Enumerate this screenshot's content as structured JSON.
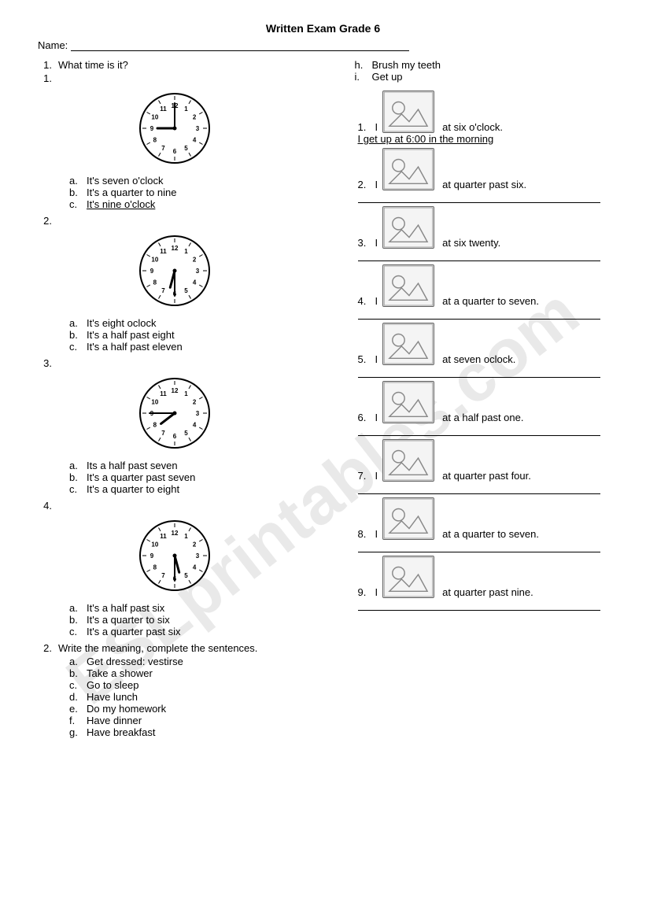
{
  "title": "Written Exam Grade 6",
  "name_label": "Name:",
  "watermark": "ESLprintables.com",
  "left": {
    "q1": {
      "num": "1.",
      "text": "What time is it?",
      "sub_num": "1.",
      "clocks": [
        {
          "hour": 9,
          "minute": 0,
          "opts": [
            {
              "l": "a.",
              "t": "It's seven o'clock"
            },
            {
              "l": "b.",
              "t": "It's a quarter to nine"
            },
            {
              "l": "c.",
              "t": "It's nine o'clock",
              "u": true
            }
          ]
        },
        {
          "num": "2.",
          "hour": 6,
          "minute": 30,
          "opts": [
            {
              "l": "a.",
              "t": "It's eight oclock"
            },
            {
              "l": "b.",
              "t": "It's a half past eight"
            },
            {
              "l": "c.",
              "t": "It's a half past eleven"
            }
          ]
        },
        {
          "num": "3.",
          "hour": 7,
          "minute": 45,
          "opts": [
            {
              "l": "a.",
              "t": "Its a half past seven"
            },
            {
              "l": "b.",
              "t": "It's a quarter past seven"
            },
            {
              "l": "c.",
              "t": "It's a quarter to eight"
            }
          ]
        },
        {
          "num": "4.",
          "hour": 5,
          "minute": 30,
          "opts": [
            {
              "l": "a.",
              "t": "It's a half past six"
            },
            {
              "l": "b.",
              "t": "It's a quarter to six"
            },
            {
              "l": "c.",
              "t": "It's a quarter past six"
            }
          ]
        }
      ]
    },
    "q2": {
      "num": "2.",
      "text": "Write the meaning, complete the sentences.",
      "vocab": [
        {
          "l": "a.",
          "t": "Get dressed: vestirse"
        },
        {
          "l": "b.",
          "t": "Take a shower"
        },
        {
          "l": "c.",
          "t": "Go to sleep"
        },
        {
          "l": "d.",
          "t": "Have lunch"
        },
        {
          "l": "e.",
          "t": "Do my homework"
        },
        {
          "l": "f.",
          "t": "Have dinner"
        },
        {
          "l": "g.",
          "t": "Have breakfast"
        }
      ]
    }
  },
  "right": {
    "extra_vocab": [
      {
        "l": "h.",
        "t": "Brush my teeth"
      },
      {
        "l": "i.",
        "t": "Get up"
      }
    ],
    "items": [
      {
        "n": "1.",
        "before": "I",
        "after": "at six o'clock.",
        "answer": "I get up at 6:00 in the morning"
      },
      {
        "n": "2.",
        "before": "I",
        "after": "at quarter past six."
      },
      {
        "n": "3.",
        "before": "I",
        "after": "at six twenty."
      },
      {
        "n": "4.",
        "before": "I",
        "after": "at a quarter to seven."
      },
      {
        "n": "5.",
        "before": "I",
        "after": "at seven oclock."
      },
      {
        "n": "6.",
        "before": "I",
        "after": "at a half past one."
      },
      {
        "n": "7.",
        "before": "I",
        "after": "at quarter past four."
      },
      {
        "n": "8.",
        "before": "I",
        "after": "at a quarter to seven."
      },
      {
        "n": "9.",
        "before": "I",
        "after": "at quarter past nine."
      }
    ]
  },
  "clock_style": {
    "radius": 44,
    "face_fill": "#ffffff",
    "stroke": "#000000",
    "stroke_width": 2,
    "num_font": 8,
    "hour_len": 22,
    "min_len": 32
  }
}
